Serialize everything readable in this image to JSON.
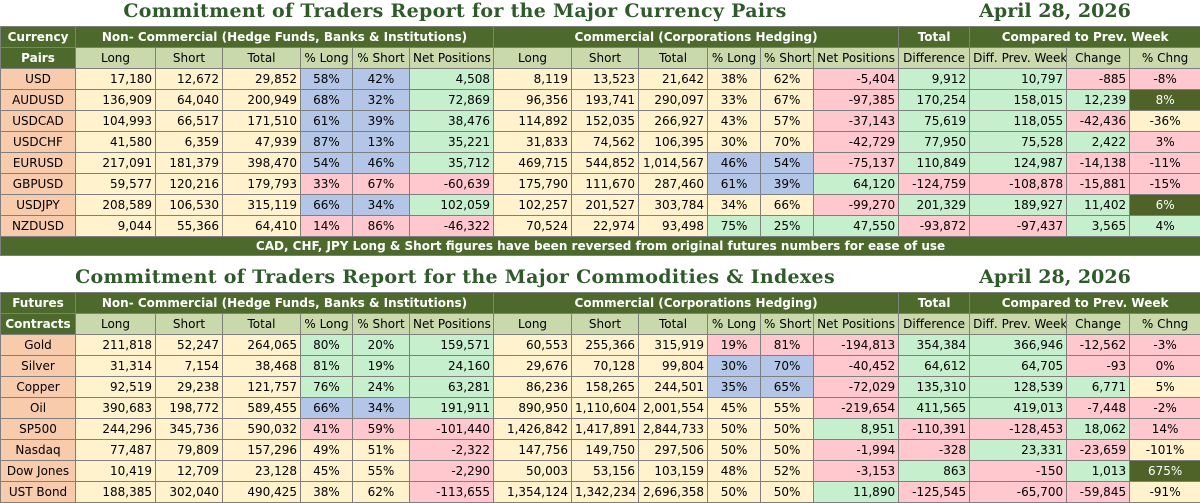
{
  "report_date": "April 28, 2026",
  "currency": {
    "title": "Commitment of Traders Report for the Major Currency Pairs",
    "label_top": "Currency",
    "label_bottom": "Pairs",
    "note": "CAD, CHF, JPY Long & Short figures have been reversed from original futures numbers for ease of use",
    "rows": [
      {
        "name": "USD",
        "v": [
          "17,180",
          "12,672",
          "29,852",
          "58%",
          "42%",
          "4,508",
          "8,119",
          "13,523",
          "21,642",
          "38%",
          "62%",
          "-5,404",
          "9,912",
          "10,797",
          "-885",
          "-8%"
        ],
        "c": [
          "cy",
          "cy",
          "cy",
          "cb",
          "cb",
          "cg",
          "cy",
          "cy",
          "cy",
          "cy",
          "cy",
          "cr",
          "cg",
          "cg",
          "cr",
          "cr"
        ]
      },
      {
        "name": "AUDUSD",
        "v": [
          "136,909",
          "64,040",
          "200,949",
          "68%",
          "32%",
          "72,869",
          "96,356",
          "193,741",
          "290,097",
          "33%",
          "67%",
          "-97,385",
          "170,254",
          "158,015",
          "12,239",
          "8%"
        ],
        "c": [
          "cy",
          "cy",
          "cy",
          "cb",
          "cb",
          "cg",
          "cy",
          "cy",
          "cy",
          "cy",
          "cy",
          "cr",
          "cg",
          "cg",
          "cg",
          "cd"
        ]
      },
      {
        "name": "USDCAD",
        "v": [
          "104,993",
          "66,517",
          "171,510",
          "61%",
          "39%",
          "38,476",
          "114,892",
          "152,035",
          "266,927",
          "43%",
          "57%",
          "-37,143",
          "75,619",
          "118,055",
          "-42,436",
          "-36%"
        ],
        "c": [
          "cy",
          "cy",
          "cy",
          "cb",
          "cb",
          "cg",
          "cy",
          "cy",
          "cy",
          "cy",
          "cy",
          "cr",
          "cg",
          "cg",
          "cr",
          "cy"
        ]
      },
      {
        "name": "USDCHF",
        "v": [
          "41,580",
          "6,359",
          "47,939",
          "87%",
          "13%",
          "35,221",
          "31,833",
          "74,562",
          "106,395",
          "30%",
          "70%",
          "-42,729",
          "77,950",
          "75,528",
          "2,422",
          "3%"
        ],
        "c": [
          "cy",
          "cy",
          "cy",
          "cb",
          "cb",
          "cg",
          "cy",
          "cy",
          "cy",
          "cy",
          "cy",
          "cr",
          "cg",
          "cg",
          "cg",
          "cr"
        ]
      },
      {
        "name": "EURUSD",
        "v": [
          "217,091",
          "181,379",
          "398,470",
          "54%",
          "46%",
          "35,712",
          "469,715",
          "544,852",
          "1,014,567",
          "46%",
          "54%",
          "-75,137",
          "110,849",
          "124,987",
          "-14,138",
          "-11%"
        ],
        "c": [
          "cy",
          "cy",
          "cy",
          "cb",
          "cb",
          "cg",
          "cy",
          "cy",
          "cy",
          "cb",
          "cb",
          "cr",
          "cg",
          "cg",
          "cr",
          "cr"
        ]
      },
      {
        "name": "GBPUSD",
        "v": [
          "59,577",
          "120,216",
          "179,793",
          "33%",
          "67%",
          "-60,639",
          "175,790",
          "111,670",
          "287,460",
          "61%",
          "39%",
          "64,120",
          "-124,759",
          "-108,878",
          "-15,881",
          "-15%"
        ],
        "c": [
          "cy",
          "cy",
          "cy",
          "cr",
          "cr",
          "cr",
          "cy",
          "cy",
          "cy",
          "cb",
          "cb",
          "cg",
          "cr",
          "cr",
          "cr",
          "cr"
        ]
      },
      {
        "name": "USDJPY",
        "v": [
          "208,589",
          "106,530",
          "315,119",
          "66%",
          "34%",
          "102,059",
          "102,257",
          "201,527",
          "303,784",
          "34%",
          "66%",
          "-99,270",
          "201,329",
          "189,927",
          "11,402",
          "6%"
        ],
        "c": [
          "cy",
          "cy",
          "cy",
          "cb",
          "cb",
          "cg",
          "cy",
          "cy",
          "cy",
          "cy",
          "cy",
          "cr",
          "cg",
          "cg",
          "cg",
          "cd"
        ]
      },
      {
        "name": "NZDUSD",
        "v": [
          "9,044",
          "55,366",
          "64,410",
          "14%",
          "86%",
          "-46,322",
          "70,524",
          "22,974",
          "93,498",
          "75%",
          "25%",
          "47,550",
          "-93,872",
          "-97,437",
          "3,565",
          "4%"
        ],
        "c": [
          "cy",
          "cy",
          "cy",
          "cr",
          "cr",
          "cr",
          "cy",
          "cy",
          "cy",
          "cg",
          "cg",
          "cg",
          "cr",
          "cr",
          "cg",
          "cg"
        ]
      }
    ]
  },
  "commodity": {
    "title": "Commitment of Traders Report for the Major Commodities & Indexes",
    "label_top": "Futures",
    "label_bottom": "Contracts",
    "rows": [
      {
        "name": "Gold",
        "v": [
          "211,818",
          "52,247",
          "264,065",
          "80%",
          "20%",
          "159,571",
          "60,553",
          "255,366",
          "315,919",
          "19%",
          "81%",
          "-194,813",
          "354,384",
          "366,946",
          "-12,562",
          "-3%"
        ],
        "c": [
          "cy",
          "cy",
          "cy",
          "cg",
          "cg",
          "cg",
          "cy",
          "cy",
          "cy",
          "cr",
          "cr",
          "cr",
          "cg",
          "cg",
          "cr",
          "cr"
        ]
      },
      {
        "name": "Silver",
        "v": [
          "31,314",
          "7,154",
          "38,468",
          "81%",
          "19%",
          "24,160",
          "29,676",
          "70,128",
          "99,804",
          "30%",
          "70%",
          "-40,452",
          "64,612",
          "64,705",
          "-93",
          "0%"
        ],
        "c": [
          "cy",
          "cy",
          "cy",
          "cg",
          "cg",
          "cg",
          "cy",
          "cy",
          "cy",
          "cb",
          "cb",
          "cr",
          "cg",
          "cg",
          "cr",
          "cr"
        ]
      },
      {
        "name": "Copper",
        "v": [
          "92,519",
          "29,238",
          "121,757",
          "76%",
          "24%",
          "63,281",
          "86,236",
          "158,265",
          "244,501",
          "35%",
          "65%",
          "-72,029",
          "135,310",
          "128,539",
          "6,771",
          "5%"
        ],
        "c": [
          "cy",
          "cy",
          "cy",
          "cg",
          "cg",
          "cg",
          "cy",
          "cy",
          "cy",
          "cb",
          "cb",
          "cr",
          "cg",
          "cg",
          "cg",
          "cy"
        ]
      },
      {
        "name": "Oil",
        "v": [
          "390,683",
          "198,772",
          "589,455",
          "66%",
          "34%",
          "191,911",
          "890,950",
          "1,110,604",
          "2,001,554",
          "45%",
          "55%",
          "-219,654",
          "411,565",
          "419,013",
          "-7,448",
          "-2%"
        ],
        "c": [
          "cy",
          "cy",
          "cy",
          "cb",
          "cb",
          "cg",
          "cy",
          "cy",
          "cy",
          "cy",
          "cy",
          "cr",
          "cg",
          "cg",
          "cr",
          "cr"
        ]
      },
      {
        "name": "SP500",
        "v": [
          "244,296",
          "345,736",
          "590,032",
          "41%",
          "59%",
          "-101,440",
          "1,426,842",
          "1,417,891",
          "2,844,733",
          "50%",
          "50%",
          "8,951",
          "-110,391",
          "-128,453",
          "18,062",
          "14%"
        ],
        "c": [
          "cy",
          "cy",
          "cy",
          "cr",
          "cr",
          "cr",
          "cy",
          "cy",
          "cy",
          "cy",
          "cy",
          "cg",
          "cr",
          "cr",
          "cg",
          "cr"
        ]
      },
      {
        "name": "Nasdaq",
        "v": [
          "77,487",
          "79,809",
          "157,296",
          "49%",
          "51%",
          "-2,322",
          "147,756",
          "149,750",
          "297,506",
          "50%",
          "50%",
          "-1,994",
          "-328",
          "23,331",
          "-23,659",
          "-101%"
        ],
        "c": [
          "cy",
          "cy",
          "cy",
          "cy",
          "cy",
          "cr",
          "cy",
          "cy",
          "cy",
          "cy",
          "cy",
          "cr",
          "cr",
          "cg",
          "cr",
          "cy"
        ]
      },
      {
        "name": "Dow Jones",
        "v": [
          "10,419",
          "12,709",
          "23,128",
          "45%",
          "55%",
          "-2,290",
          "50,003",
          "53,156",
          "103,159",
          "48%",
          "52%",
          "-3,153",
          "863",
          "-150",
          "1,013",
          "675%"
        ],
        "c": [
          "cy",
          "cy",
          "cy",
          "cy",
          "cy",
          "cr",
          "cy",
          "cy",
          "cy",
          "cy",
          "cy",
          "cr",
          "cg",
          "cr",
          "cg",
          "cd"
        ]
      },
      {
        "name": "UST Bond",
        "v": [
          "188,385",
          "302,040",
          "490,425",
          "38%",
          "62%",
          "-113,655",
          "1,354,124",
          "1,342,234",
          "2,696,358",
          "50%",
          "50%",
          "11,890",
          "-125,545",
          "-65,700",
          "-59,845",
          "-91%"
        ],
        "c": [
          "cy",
          "cy",
          "cy",
          "cy",
          "cy",
          "cr",
          "cy",
          "cy",
          "cy",
          "cy",
          "cy",
          "cg",
          "cr",
          "cr",
          "cr",
          "cy"
        ]
      }
    ]
  },
  "headers": {
    "noncommercial": "Non- Commercial (Hedge Funds, Banks & Institutions)",
    "commercial": "Commercial (Corporations Hedging)",
    "total": "Total",
    "compared": "Compared to Prev. Week",
    "columns": [
      "Long",
      "Short",
      "Total",
      "% Long",
      "% Short",
      "Net Positions",
      "Long",
      "Short",
      "Total",
      "% Long",
      "% Short",
      "Net Positions",
      "Difference",
      "Diff. Prev. Week",
      "Change",
      "% Chng"
    ]
  }
}
